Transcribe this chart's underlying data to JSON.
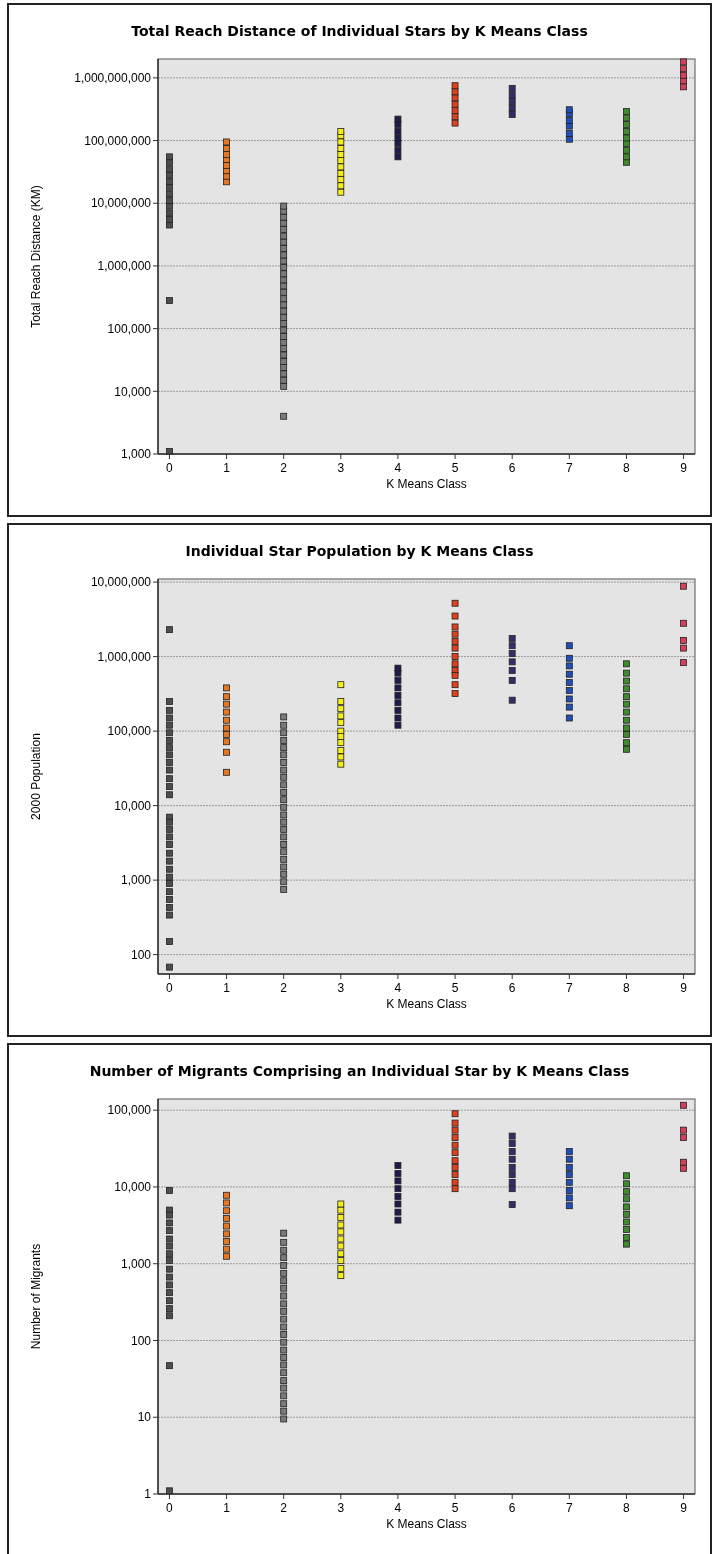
{
  "chart_data": [
    {
      "type": "scatter",
      "title": "Total Reach Distance of Individual Stars by K Means Class",
      "xlabel": "K Means Class",
      "ylabel": "Total Reach Distance (KM)",
      "log": "y",
      "grid": "y",
      "marker": "square",
      "xlim": [
        -0.2,
        9.2
      ],
      "xticks": [
        0,
        1,
        2,
        3,
        4,
        5,
        6,
        7,
        8,
        9
      ],
      "ylim": [
        1000,
        2000000000
      ],
      "yticks": [
        {
          "value": 1000,
          "label": "1,000"
        },
        {
          "value": 10000,
          "label": "10,000"
        },
        {
          "value": 100000,
          "label": "100,000"
        },
        {
          "value": 1000000,
          "label": "1,000,000"
        },
        {
          "value": 10000000,
          "label": "10,000,000"
        },
        {
          "value": 100000000,
          "label": "100,000,000"
        },
        {
          "value": 1000000000,
          "label": "1,000,000,000"
        }
      ],
      "series": [
        {
          "color": "#4d4d4d",
          "x": [
            0,
            0,
            0,
            0,
            0,
            0,
            0,
            0,
            0,
            0,
            0,
            0,
            0,
            0
          ],
          "values": [
            4500000,
            5500000,
            7000000,
            9000000,
            11000000,
            14000000,
            18000000,
            22000000,
            28000000,
            35000000,
            45000000,
            55000000,
            280000,
            1100
          ]
        },
        {
          "color": "#e8761e",
          "x": [
            1,
            1,
            1,
            1,
            1,
            1,
            1,
            1
          ],
          "values": [
            22000000,
            27000000,
            33000000,
            40000000,
            50000000,
            60000000,
            75000000,
            95000000
          ]
        },
        {
          "color": "#7a7a7a",
          "x": [
            2,
            2,
            2,
            2,
            2,
            2,
            2,
            2,
            2,
            2,
            2,
            2,
            2,
            2,
            2,
            2,
            2,
            2,
            2,
            2,
            2,
            2,
            2,
            2,
            2,
            2,
            2,
            2,
            2,
            2,
            2
          ],
          "values": [
            4000,
            12000,
            15000,
            19000,
            24000,
            30000,
            38000,
            48000,
            60000,
            75000,
            95000,
            120000,
            150000,
            190000,
            240000,
            300000,
            380000,
            480000,
            600000,
            750000,
            950000,
            1200000,
            1500000,
            1900000,
            2400000,
            3000000,
            3800000,
            4800000,
            6000000,
            7500000,
            9000000
          ]
        },
        {
          "color": "#f5ee1a",
          "x": [
            3,
            3,
            3,
            3,
            3,
            3,
            3,
            3,
            3,
            3,
            3
          ],
          "values": [
            15000000,
            19000000,
            24000000,
            30000000,
            38000000,
            48000000,
            60000000,
            75000000,
            95000000,
            120000000,
            140000000
          ]
        },
        {
          "color": "#1e1c4a",
          "x": [
            4,
            4,
            4,
            4,
            4,
            4,
            4
          ],
          "values": [
            55000000,
            70000000,
            90000000,
            110000000,
            140000000,
            180000000,
            220000000
          ]
        },
        {
          "color": "#e0401e",
          "x": [
            5,
            5,
            5,
            5,
            5,
            5,
            5
          ],
          "values": [
            190000000,
            240000000,
            300000000,
            380000000,
            480000000,
            600000000,
            750000000
          ]
        },
        {
          "color": "#3a2a6a",
          "x": [
            6,
            6,
            6,
            6,
            6
          ],
          "values": [
            260000000,
            330000000,
            420000000,
            530000000,
            680000000
          ]
        },
        {
          "color": "#1f4fb8",
          "x": [
            7,
            7,
            7,
            7,
            7,
            7
          ],
          "values": [
            105000000,
            130000000,
            170000000,
            210000000,
            270000000,
            310000000
          ]
        },
        {
          "color": "#3f8a2c",
          "x": [
            8,
            8,
            8,
            8,
            8,
            8,
            8,
            8,
            8
          ],
          "values": [
            45000000,
            55000000,
            70000000,
            90000000,
            110000000,
            140000000,
            180000000,
            230000000,
            290000000
          ]
        },
        {
          "color": "#d4405a",
          "x": [
            9,
            9,
            9,
            9,
            9
          ],
          "values": [
            720000000,
            900000000,
            1100000000,
            1400000000,
            1800000000
          ]
        }
      ]
    },
    {
      "type": "scatter",
      "title": "Individual Star Population by K Means Class",
      "xlabel": "K Means Class",
      "ylabel": "2000 Population",
      "log": "y",
      "grid": "y",
      "marker": "square",
      "xlim": [
        -0.2,
        9.2
      ],
      "xticks": [
        0,
        1,
        2,
        3,
        4,
        5,
        6,
        7,
        8,
        9
      ],
      "ylim": [
        55,
        11000000
      ],
      "yticks": [
        100,
        {
          "value": 1000,
          "label": "1,000"
        },
        {
          "value": 10000,
          "label": "10,000"
        },
        {
          "value": 100000,
          "label": "100,000"
        },
        {
          "value": 1000000,
          "label": "1,000,000"
        },
        {
          "value": 10000000,
          "label": "10,000,000"
        }
      ],
      "series": [
        {
          "color": "#4d4d4d",
          "x": [
            0,
            0,
            0,
            0,
            0,
            0,
            0,
            0,
            0,
            0,
            0,
            0,
            0,
            0,
            0,
            0,
            0,
            0,
            0,
            0,
            0,
            0,
            0,
            0,
            0,
            0,
            0,
            0,
            0,
            0
          ],
          "values": [
            2300000,
            250000,
            190000,
            150000,
            120000,
            95000,
            75000,
            60000,
            48000,
            38000,
            30000,
            23000,
            18000,
            14000,
            7000,
            6000,
            4800,
            3800,
            3000,
            2300,
            1800,
            1400,
            1100,
            900,
            700,
            550,
            430,
            340,
            150,
            68
          ]
        },
        {
          "color": "#e8761e",
          "x": [
            1,
            1,
            1,
            1,
            1,
            1,
            1,
            1,
            1,
            1
          ],
          "values": [
            380000,
            290000,
            230000,
            180000,
            140000,
            110000,
            90000,
            72000,
            52000,
            28000
          ]
        },
        {
          "color": "#7a7a7a",
          "x": [
            2,
            2,
            2,
            2,
            2,
            2,
            2,
            2,
            2,
            2,
            2,
            2,
            2,
            2,
            2,
            2,
            2,
            2,
            2,
            2,
            2,
            2,
            2,
            2
          ],
          "values": [
            750,
            950,
            1200,
            1500,
            1900,
            2400,
            3000,
            3800,
            4800,
            6000,
            7500,
            9500,
            12000,
            15000,
            19000,
            24000,
            30000,
            38000,
            48000,
            60000,
            75000,
            95000,
            120000,
            155000
          ]
        },
        {
          "color": "#f5ee1a",
          "x": [
            3,
            3,
            3,
            3,
            3,
            3,
            3,
            3,
            3,
            3,
            3
          ],
          "values": [
            420000,
            250000,
            200000,
            160000,
            130000,
            100000,
            85000,
            70000,
            55000,
            45000,
            36000
          ]
        },
        {
          "color": "#1e1c4a",
          "x": [
            4,
            4,
            4,
            4,
            4,
            4,
            4,
            4,
            4
          ],
          "values": [
            120000,
            150000,
            190000,
            240000,
            300000,
            380000,
            480000,
            600000,
            700000
          ]
        },
        {
          "color": "#e0401e",
          "x": [
            5,
            5,
            5,
            5,
            5,
            5,
            5,
            5,
            5,
            5,
            5,
            5
          ],
          "values": [
            5200000,
            3500000,
            2500000,
            2000000,
            1600000,
            1300000,
            1000000,
            800000,
            650000,
            560000,
            420000,
            320000
          ]
        },
        {
          "color": "#3a2a6a",
          "x": [
            6,
            6,
            6,
            6,
            6,
            6,
            6
          ],
          "values": [
            1750000,
            1400000,
            1100000,
            850000,
            650000,
            480000,
            260000
          ]
        },
        {
          "color": "#1f4fb8",
          "x": [
            7,
            7,
            7,
            7,
            7,
            7,
            7,
            7,
            7
          ],
          "values": [
            1400000,
            950000,
            750000,
            580000,
            450000,
            350000,
            270000,
            210000,
            150000
          ]
        },
        {
          "color": "#3f8a2c",
          "x": [
            8,
            8,
            8,
            8,
            8,
            8,
            8,
            8,
            8,
            8,
            8,
            8
          ],
          "values": [
            57000,
            70000,
            90000,
            110000,
            140000,
            180000,
            230000,
            290000,
            370000,
            470000,
            600000,
            800000
          ]
        },
        {
          "color": "#d4405a",
          "x": [
            9,
            9,
            9,
            9,
            9
          ],
          "values": [
            8800000,
            2800000,
            1650000,
            1300000,
            830000
          ]
        }
      ]
    },
    {
      "type": "scatter",
      "title": "Number of Migrants Comprising an Individual Star by K Means Class",
      "xlabel": "K Means Class",
      "ylabel": "Number of Migrants",
      "log": "y",
      "grid": "y",
      "marker": "square",
      "xlim": [
        -0.2,
        9.2
      ],
      "xticks": [
        0,
        1,
        2,
        3,
        4,
        5,
        6,
        7,
        8,
        9
      ],
      "ylim": [
        1,
        140000
      ],
      "yticks": [
        1,
        10,
        100,
        {
          "value": 1000,
          "label": "1,000"
        },
        {
          "value": 10000,
          "label": "10,000"
        },
        {
          "value": 100000,
          "label": "100,000"
        }
      ],
      "series": [
        {
          "color": "#4d4d4d",
          "x": [
            0,
            0,
            0,
            0,
            0,
            0,
            0,
            0,
            0,
            0,
            0,
            0,
            0,
            0,
            0,
            0,
            0,
            0
          ],
          "values": [
            9000,
            5000,
            4300,
            3400,
            2700,
            2100,
            1700,
            1350,
            1100,
            850,
            670,
            530,
            420,
            330,
            260,
            210,
            47,
            1.1
          ]
        },
        {
          "color": "#e8761e",
          "x": [
            1,
            1,
            1,
            1,
            1,
            1,
            1,
            1,
            1
          ],
          "values": [
            1250,
            1550,
            1950,
            2450,
            3100,
            3900,
            4900,
            6200,
            7800
          ]
        },
        {
          "color": "#7a7a7a",
          "x": [
            2,
            2,
            2,
            2,
            2,
            2,
            2,
            2,
            2,
            2,
            2,
            2,
            2,
            2,
            2,
            2,
            2,
            2,
            2,
            2,
            2,
            2,
            2,
            2,
            2
          ],
          "values": [
            9.5,
            12,
            15,
            19,
            24,
            30,
            38,
            48,
            60,
            75,
            95,
            120,
            150,
            190,
            240,
            300,
            380,
            480,
            600,
            750,
            950,
            1200,
            1500,
            1900,
            2500
          ]
        },
        {
          "color": "#f5ee1a",
          "x": [
            3,
            3,
            3,
            3,
            3,
            3,
            3,
            3,
            3,
            3,
            3
          ],
          "values": [
            700,
            870,
            1100,
            1350,
            1700,
            2100,
            2600,
            3200,
            4000,
            5000,
            6000
          ]
        },
        {
          "color": "#1e1c4a",
          "x": [
            4,
            4,
            4,
            4,
            4,
            4,
            4,
            4
          ],
          "values": [
            3700,
            4700,
            6000,
            7500,
            9500,
            12000,
            15000,
            19000
          ]
        },
        {
          "color": "#e0401e",
          "x": [
            5,
            5,
            5,
            5,
            5,
            5,
            5,
            5,
            5,
            5,
            5
          ],
          "values": [
            90000,
            68000,
            55000,
            44000,
            35000,
            28000,
            22000,
            18000,
            14500,
            11500,
            9500
          ]
        },
        {
          "color": "#3a2a6a",
          "x": [
            6,
            6,
            6,
            6,
            6,
            6,
            6,
            6,
            6
          ],
          "values": [
            46000,
            37000,
            29000,
            23000,
            18000,
            14500,
            11500,
            9500,
            5900
          ]
        },
        {
          "color": "#1f4fb8",
          "x": [
            7,
            7,
            7,
            7,
            7,
            7,
            7,
            7
          ],
          "values": [
            5700,
            7200,
            9000,
            11500,
            14500,
            18000,
            23000,
            29000
          ]
        },
        {
          "color": "#3f8a2c",
          "x": [
            8,
            8,
            8,
            8,
            8,
            8,
            8,
            8,
            8,
            8
          ],
          "values": [
            1800,
            2200,
            2800,
            3500,
            4400,
            5500,
            7000,
            8700,
            11000,
            14000
          ]
        },
        {
          "color": "#d4405a",
          "x": [
            9,
            9,
            9,
            9,
            9
          ],
          "values": [
            116000,
            55000,
            44000,
            21000,
            17500
          ]
        }
      ]
    }
  ]
}
